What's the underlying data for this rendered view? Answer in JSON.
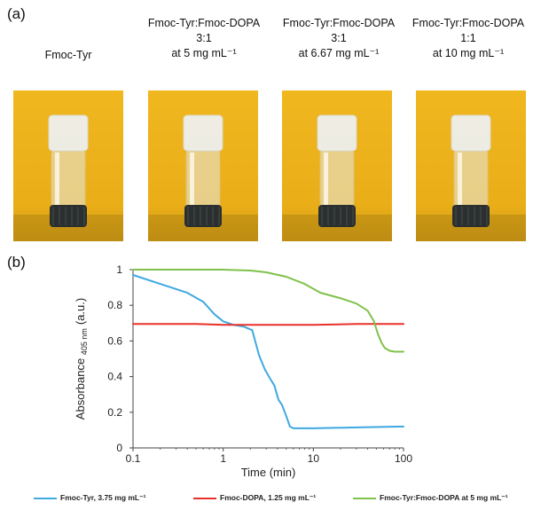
{
  "panel_a": {
    "label": "(a)",
    "vials": [
      {
        "caption_lines": [
          "Fmoc-Tyr"
        ]
      },
      {
        "caption_lines": [
          "Fmoc-Tyr:Fmoc-DOPA",
          "3:1",
          "at 5 mg mL⁻¹"
        ]
      },
      {
        "caption_lines": [
          "Fmoc-Tyr:Fmoc-DOPA",
          "3:1",
          "at 6.67 mg mL⁻¹"
        ]
      },
      {
        "caption_lines": [
          "Fmoc-Tyr:Fmoc-DOPA",
          "1:1",
          "at 10 mg mL⁻¹"
        ]
      }
    ],
    "colors": {
      "background": "#f0b71f",
      "cap": "#2b2f2f",
      "glass": "#e8ebe6"
    }
  },
  "panel_b": {
    "label": "(b)"
  },
  "chart_data": {
    "type": "line",
    "xscale": "log",
    "xlim": [
      0.1,
      100
    ],
    "ylim": [
      0,
      1
    ],
    "xlabel": "Time (min)",
    "ylabel_main": "Absorbance",
    "ylabel_sub": "405 nm",
    "ylabel_unit": "(a.u.)",
    "xticks": [
      0.1,
      1,
      10,
      100
    ],
    "xtick_labels": [
      "0.1",
      "1",
      "10",
      "100"
    ],
    "yticks": [
      0,
      0.2,
      0.4,
      0.6,
      0.8,
      1
    ],
    "ytick_labels": [
      "0",
      "0.2",
      "0.4",
      "0.6",
      "0.8",
      "1"
    ],
    "legend_position": "bottom",
    "series": [
      {
        "name": "Fmoc-Tyr, 3.75 mg mL⁻¹",
        "color": "#3fa9e0",
        "x": [
          0.1,
          0.2,
          0.4,
          0.6,
          0.8,
          1.0,
          1.3,
          1.7,
          2.1,
          2.5,
          2.9,
          3.3,
          3.7,
          4.1,
          4.5,
          5.0,
          5.5,
          6,
          10,
          30,
          100
        ],
        "y": [
          0.97,
          0.92,
          0.87,
          0.82,
          0.75,
          0.71,
          0.69,
          0.68,
          0.66,
          0.52,
          0.44,
          0.39,
          0.35,
          0.27,
          0.24,
          0.18,
          0.12,
          0.11,
          0.11,
          0.115,
          0.12
        ]
      },
      {
        "name": "Fmoc-DOPA, 1.25 mg mL⁻¹",
        "color": "#e8302a",
        "x": [
          0.1,
          0.5,
          1,
          2,
          5,
          10,
          30,
          100
        ],
        "y": [
          0.695,
          0.695,
          0.69,
          0.69,
          0.69,
          0.69,
          0.695,
          0.695
        ]
      },
      {
        "name": "Fmoc-Tyr:Fmoc-DOPA at 5 mg mL⁻¹",
        "color": "#7fc14a",
        "x": [
          0.1,
          0.5,
          1,
          2,
          3,
          5,
          8,
          12,
          20,
          30,
          40,
          47,
          52,
          57,
          62,
          70,
          80,
          100
        ],
        "y": [
          1.0,
          1.0,
          1.0,
          0.995,
          0.985,
          0.96,
          0.92,
          0.87,
          0.84,
          0.81,
          0.77,
          0.71,
          0.64,
          0.59,
          0.56,
          0.545,
          0.54,
          0.54
        ]
      }
    ]
  }
}
